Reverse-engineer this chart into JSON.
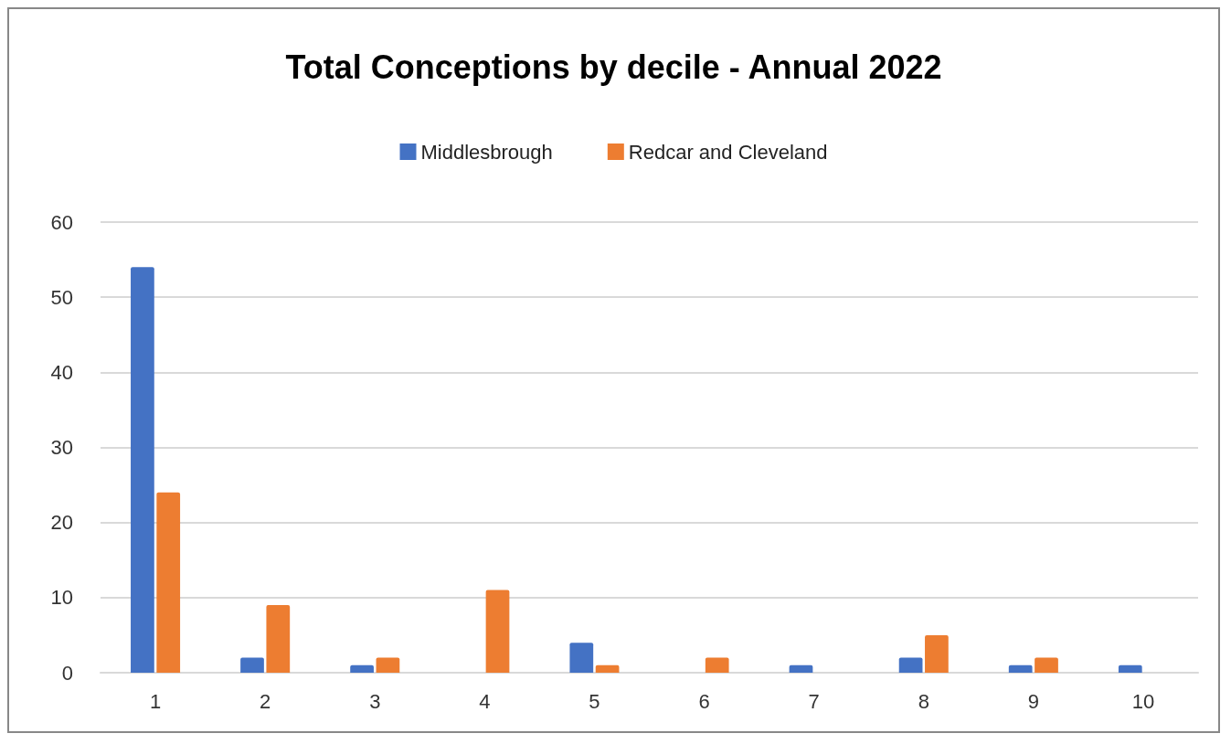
{
  "chart_data": {
    "type": "bar",
    "title": "Total Conceptions by decile - Annual 2022",
    "categories": [
      "1",
      "2",
      "3",
      "4",
      "5",
      "6",
      "7",
      "8",
      "9",
      "10"
    ],
    "series": [
      {
        "name": "Middlesbrough",
        "color": "#4472c4",
        "values": [
          54,
          2,
          1,
          0,
          4,
          0,
          1,
          2,
          1,
          1
        ]
      },
      {
        "name": "Redcar and Cleveland",
        "color": "#ed7d31",
        "values": [
          24,
          9,
          2,
          11,
          1,
          2,
          0,
          5,
          2,
          0
        ]
      }
    ],
    "ylim": [
      0,
      60
    ],
    "yticks": [
      0,
      10,
      20,
      30,
      40,
      50,
      60
    ],
    "grid": "y",
    "legend": "top"
  }
}
